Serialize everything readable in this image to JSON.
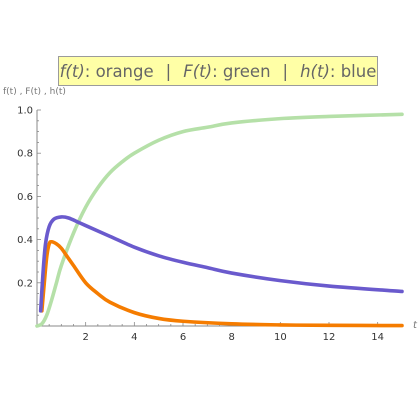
{
  "chart_data": {
    "type": "line",
    "legend_text": {
      "f_sym": "f(t)",
      "f_col": ": orange",
      "sep": "|",
      "F_sym": "F(t)",
      "F_col": ": green",
      "h_sym": "h(t)",
      "h_col": ": blue"
    },
    "ylabel": "f(t) ,  F(t) ,  h(t)",
    "xlabel": "t",
    "xlim": [
      0,
      15
    ],
    "ylim": [
      0,
      1.0
    ],
    "x_ticks": [
      "2",
      "4",
      "6",
      "8",
      "10",
      "12",
      "14"
    ],
    "y_ticks": [
      "0.2",
      "0.4",
      "0.6",
      "0.8",
      "1.0"
    ],
    "legend_placement": "top-center",
    "grid": false,
    "series": [
      {
        "name": "f(t)",
        "color": "#f57c00",
        "x": [
          0.2,
          0.3,
          0.4,
          0.5,
          0.6,
          0.8,
          1.0,
          1.25,
          1.5,
          2.0,
          2.5,
          3.0,
          4.0,
          5.0,
          6.0,
          8.0,
          10.0,
          12.0,
          15.0
        ],
        "y": [
          0.07,
          0.2,
          0.32,
          0.38,
          0.39,
          0.38,
          0.36,
          0.32,
          0.28,
          0.2,
          0.15,
          0.11,
          0.062,
          0.035,
          0.022,
          0.01,
          0.005,
          0.003,
          0.002
        ]
      },
      {
        "name": "F(t)",
        "color": "#b5e0a8",
        "x": [
          0.0,
          0.2,
          0.4,
          0.6,
          0.8,
          1.0,
          1.5,
          2.0,
          2.5,
          3.0,
          3.5,
          4.0,
          5.0,
          6.0,
          7.0,
          8.0,
          10.0,
          12.0,
          15.0
        ],
        "y": [
          0.0,
          0.01,
          0.05,
          0.12,
          0.2,
          0.28,
          0.43,
          0.55,
          0.64,
          0.71,
          0.76,
          0.8,
          0.86,
          0.9,
          0.92,
          0.94,
          0.96,
          0.97,
          0.98
        ]
      },
      {
        "name": "h(t)",
        "color": "#6a5acd",
        "x": [
          0.15,
          0.25,
          0.35,
          0.5,
          0.7,
          1.0,
          1.3,
          1.7,
          2.0,
          3.0,
          4.0,
          5.0,
          6.0,
          7.0,
          8.0,
          10.0,
          12.0,
          15.0
        ],
        "y": [
          0.07,
          0.25,
          0.38,
          0.46,
          0.495,
          0.505,
          0.5,
          0.48,
          0.465,
          0.415,
          0.365,
          0.325,
          0.295,
          0.27,
          0.245,
          0.21,
          0.185,
          0.16
        ]
      }
    ]
  }
}
